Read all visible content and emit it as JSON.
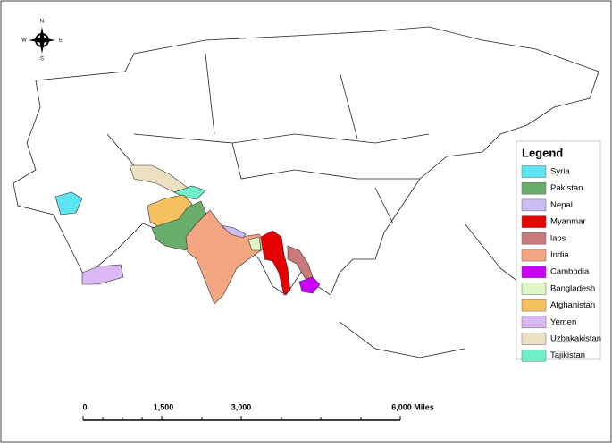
{
  "compass": {
    "north": "N",
    "south": "S",
    "east": "E",
    "west": "W"
  },
  "legend": {
    "title": "Legend",
    "items": [
      {
        "label": "Syria",
        "color": "#5ee3f0"
      },
      {
        "label": "Pakistan",
        "color": "#6aac6a"
      },
      {
        "label": "Nepal",
        "color": "#cbbcf2"
      },
      {
        "label": "Myanmar",
        "color": "#e60000"
      },
      {
        "label": "laos",
        "color": "#c97a7a"
      },
      {
        "label": "India",
        "color": "#f4a582"
      },
      {
        "label": "Cambodia",
        "color": "#cc00ff"
      },
      {
        "label": "Bangladesh",
        "color": "#dcf7c4"
      },
      {
        "label": "Afghanistan",
        "color": "#f5c060"
      },
      {
        "label": "Yemen",
        "color": "#dab9f5"
      },
      {
        "label": "Uzbakakistan",
        "color": "#ede0c0"
      },
      {
        "label": "Tajikistan",
        "color": "#70f0c8"
      }
    ]
  },
  "scale_bar": {
    "labels": [
      "0",
      "1,500",
      "3,000",
      "6,000 Miles"
    ]
  }
}
